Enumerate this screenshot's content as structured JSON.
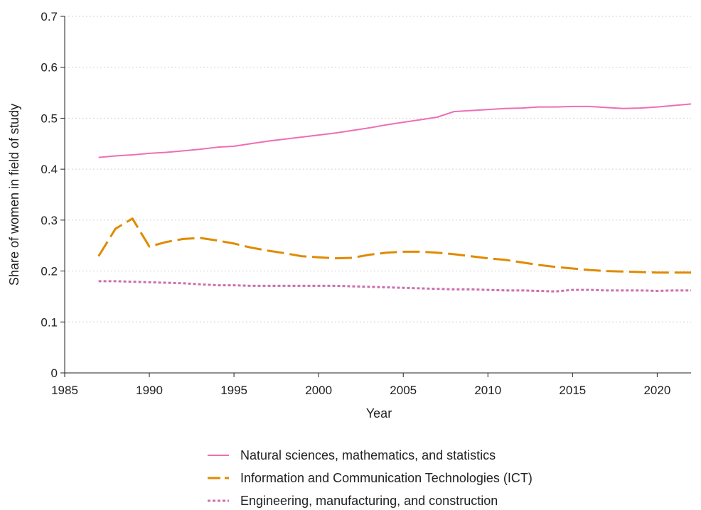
{
  "chart_data": {
    "type": "line",
    "title": "",
    "xlabel": "Year",
    "ylabel": "Share of women in field of study",
    "xlim": [
      1985,
      2022
    ],
    "ylim": [
      0,
      0.7
    ],
    "xticks": [
      1985,
      1990,
      1995,
      2000,
      2005,
      2010,
      2015,
      2020
    ],
    "xtick_labels": [
      "1985",
      "1990",
      "1995",
      "2000",
      "2005",
      "2010",
      "2015",
      "2020"
    ],
    "yticks": [
      0,
      0.1,
      0.2,
      0.3,
      0.4,
      0.5,
      0.6,
      0.7
    ],
    "ytick_labels": [
      "0",
      "0.1",
      "0.2",
      "0.3",
      "0.4",
      "0.5",
      "0.6",
      "0.7"
    ],
    "grid": "horizontal dotted",
    "legend_position": "bottom",
    "x": [
      1987,
      1988,
      1989,
      1990,
      1991,
      1992,
      1993,
      1994,
      1995,
      1996,
      1997,
      1998,
      1999,
      2000,
      2001,
      2002,
      2003,
      2004,
      2005,
      2006,
      2007,
      2008,
      2009,
      2010,
      2011,
      2012,
      2013,
      2014,
      2015,
      2016,
      2017,
      2018,
      2019,
      2020,
      2021,
      2022
    ],
    "series": [
      {
        "name": "Natural sciences, mathematics, and statistics",
        "color": "#ee6eb4",
        "style": "solid",
        "values": [
          0.423,
          0.426,
          0.428,
          0.431,
          0.433,
          0.436,
          0.439,
          0.443,
          0.445,
          0.45,
          0.455,
          0.459,
          0.463,
          0.467,
          0.471,
          0.476,
          0.481,
          0.487,
          0.492,
          0.497,
          0.502,
          0.513,
          0.515,
          0.517,
          0.519,
          0.52,
          0.522,
          0.522,
          0.523,
          0.523,
          0.521,
          0.519,
          0.52,
          0.522,
          0.525,
          0.528
        ]
      },
      {
        "name": "Information and Communication Technologies (ICT)",
        "color": "#e08a00",
        "style": "longdash",
        "values": [
          0.229,
          0.283,
          0.303,
          0.248,
          0.257,
          0.263,
          0.265,
          0.26,
          0.254,
          0.246,
          0.24,
          0.235,
          0.229,
          0.227,
          0.225,
          0.226,
          0.232,
          0.236,
          0.238,
          0.238,
          0.236,
          0.233,
          0.229,
          0.225,
          0.222,
          0.217,
          0.212,
          0.208,
          0.205,
          0.202,
          0.2,
          0.199,
          0.198,
          0.197,
          0.197,
          0.197
        ]
      },
      {
        "name": "Engineering, manufacturing, and construction",
        "color": "#cc6fae",
        "style": "dotted",
        "values": [
          0.18,
          0.18,
          0.179,
          0.178,
          0.177,
          0.176,
          0.174,
          0.172,
          0.172,
          0.171,
          0.171,
          0.171,
          0.171,
          0.171,
          0.171,
          0.17,
          0.169,
          0.168,
          0.167,
          0.166,
          0.165,
          0.164,
          0.164,
          0.163,
          0.162,
          0.162,
          0.161,
          0.16,
          0.163,
          0.163,
          0.162,
          0.162,
          0.162,
          0.161,
          0.162,
          0.162
        ]
      }
    ]
  }
}
